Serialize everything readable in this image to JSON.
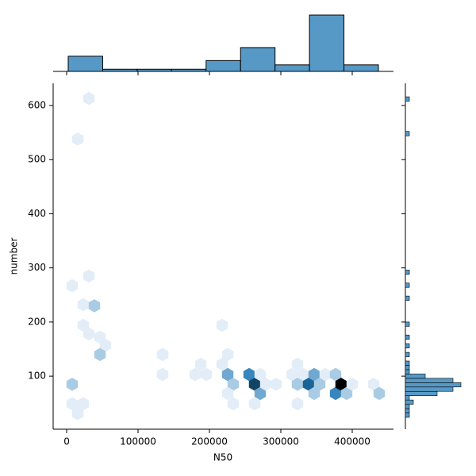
{
  "chart_data": {
    "type": "hexbin",
    "x_label": "N50",
    "y_label": "number",
    "xlim": [
      -18900,
      457800
    ],
    "ylim": [
      2,
      641
    ],
    "xticks": [
      0,
      100000,
      200000,
      300000,
      400000
    ],
    "yticks": [
      100,
      200,
      300,
      400,
      500,
      600
    ],
    "cmap": [
      "#eaf2fb",
      "#1f77b4",
      "#000000"
    ],
    "hexbins": {
      "x": [
        31100,
        15600,
        7800,
        31100,
        23300,
        38900,
        23300,
        31100,
        46700,
        54400,
        46700,
        7800,
        7800,
        23300,
        15600,
        134400,
        134400,
        217800,
        187800,
        180000,
        195600,
        217800,
        225600,
        225600,
        233300,
        225600,
        233300,
        255600,
        263300,
        271100,
        271100,
        263300,
        278900,
        293300,
        323300,
        315600,
        331100,
        323300,
        323300,
        338900,
        346700,
        346700,
        354400,
        362200,
        376700,
        376700,
        384400,
        392200,
        400000,
        430000,
        437800
      ],
      "y": [
        613,
        538,
        267,
        285,
        232,
        230,
        194,
        178,
        172,
        157,
        140,
        85,
        49,
        49,
        31,
        140,
        103,
        194,
        122,
        103,
        103,
        122,
        140,
        103,
        85,
        68,
        49,
        103,
        85,
        103,
        68,
        49,
        85,
        85,
        122,
        103,
        103,
        85,
        49,
        85,
        103,
        68,
        85,
        103,
        103,
        68,
        85,
        68,
        85,
        85,
        68
      ],
      "counts": [
        1,
        1,
        1,
        1,
        1,
        2,
        1,
        1,
        1,
        1,
        2,
        2,
        1,
        1,
        1,
        1,
        1,
        1,
        1,
        1,
        1,
        1,
        1,
        3,
        2,
        1,
        1,
        4,
        6,
        1,
        3,
        1,
        1,
        1,
        1,
        1,
        1,
        2,
        1,
        5,
        3,
        2,
        2,
        1,
        2,
        4,
        8,
        2,
        1,
        1,
        2
      ]
    },
    "marginal_x": {
      "type": "histogram",
      "color": "#5799c6",
      "bins": [
        2200,
        50500,
        98800,
        147000,
        195300,
        243600,
        291900,
        340100,
        388400,
        436700
      ],
      "counts": [
        7,
        1,
        1,
        1,
        5,
        11,
        3,
        26,
        3
      ]
    },
    "marginal_y": {
      "type": "histogram",
      "color": "#5799c6",
      "bins": [
        24,
        32,
        40,
        48,
        56,
        64,
        72,
        80,
        88,
        96,
        104,
        112,
        120,
        128,
        136,
        144,
        152,
        160,
        168,
        176,
        184,
        192,
        200,
        208,
        216,
        224,
        232,
        240,
        248,
        256,
        264,
        272,
        280,
        288,
        296,
        304,
        312,
        320,
        328,
        336,
        344,
        352,
        360,
        368,
        376,
        384,
        392,
        400,
        408,
        416,
        424,
        432,
        440,
        448,
        456,
        464,
        472,
        480,
        488,
        496,
        504,
        512,
        520,
        528,
        536,
        544,
        552,
        560,
        568,
        576,
        584,
        592,
        600,
        608,
        616,
        624
      ],
      "counts": [
        1,
        1,
        1,
        2,
        1,
        8,
        12,
        14,
        12,
        5,
        1,
        1,
        1,
        0,
        1,
        0,
        1,
        0,
        1,
        0,
        0,
        1,
        0,
        0,
        0,
        0,
        0,
        1,
        0,
        0,
        1,
        0,
        0,
        1,
        0,
        0,
        0,
        0,
        0,
        0,
        0,
        0,
        0,
        0,
        0,
        0,
        0,
        0,
        0,
        0,
        0,
        0,
        0,
        0,
        0,
        0,
        0,
        0,
        0,
        0,
        0,
        0,
        0,
        0,
        0,
        1,
        0,
        0,
        0,
        0,
        0,
        0,
        0,
        1,
        0
      ]
    }
  }
}
